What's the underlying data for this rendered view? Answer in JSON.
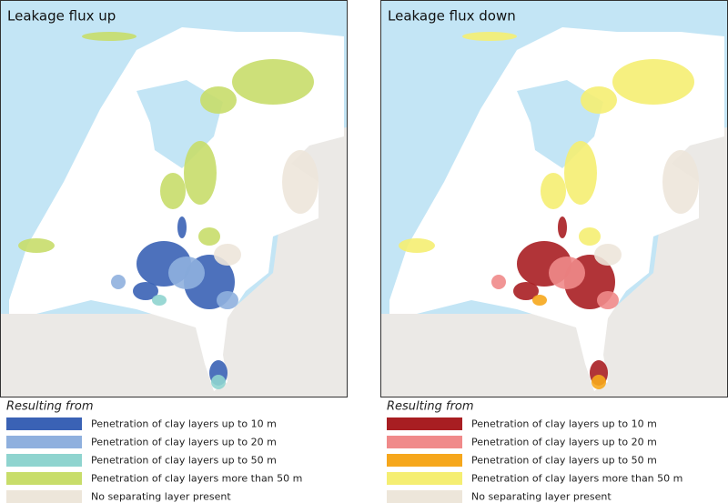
{
  "panels": [
    {
      "title": "Leakage flux up",
      "legend_title": "Resulting from",
      "legend": [
        {
          "label": "Penetration of clay layers up to 10 m",
          "color": "#3a62b5"
        },
        {
          "label": "Penetration of clay layers up to 20 m",
          "color": "#8fb0de"
        },
        {
          "label": "Penetration of clay layers up to 50 m",
          "color": "#8fd4cf"
        },
        {
          "label": "Penetration of clay layers more than 50 m",
          "color": "#c8dd6a"
        },
        {
          "label": "No separating layer present",
          "color": "#ede6da"
        }
      ]
    },
    {
      "title": "Leakage flux down",
      "legend_title": "Resulting from",
      "legend": [
        {
          "label": "Penetration of clay layers up to 10 m",
          "color": "#a81e22"
        },
        {
          "label": "Penetration of clay layers up to 20 m",
          "color": "#f08a8a"
        },
        {
          "label": "Penetration of clay layers up to 50 m",
          "color": "#f6a71c"
        },
        {
          "label": "Penetration of clay layers more than 50 m",
          "color": "#f5ee72"
        },
        {
          "label": "No separating layer present",
          "color": "#ede6da"
        }
      ]
    }
  ]
}
